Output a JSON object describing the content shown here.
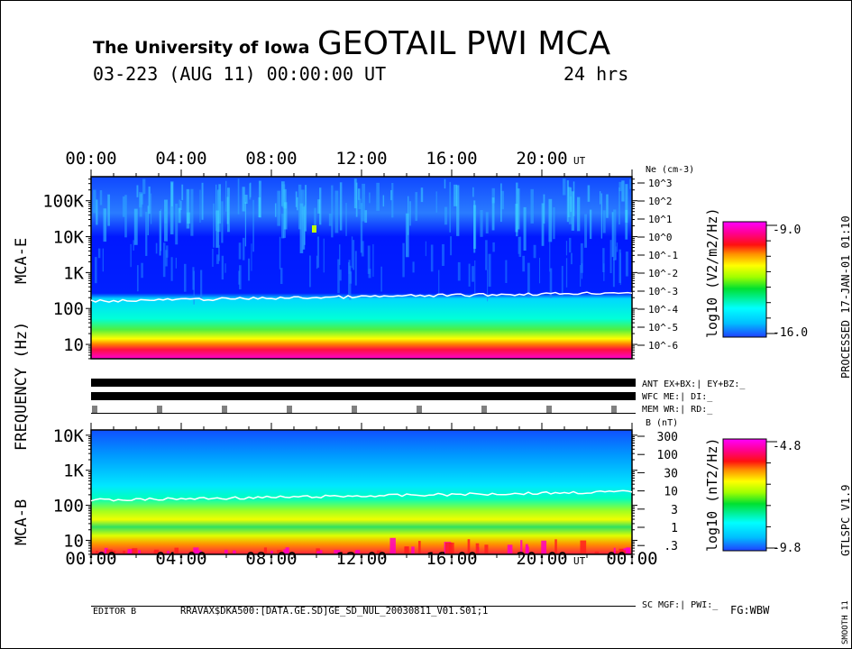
{
  "header": {
    "institution": "The University of Iowa",
    "title": "GEOTAIL PWI MCA",
    "date_line": "03-223 (AUG 11) 00:00:00 UT",
    "duration": "24 hrs"
  },
  "side_labels": {
    "panel_e": "MCA-E",
    "frequency": "FREQUENCY (Hz)",
    "panel_b": "MCA-B",
    "processed": "PROCESSED 17-JAN-01  01:10",
    "version": "GTLSPC  V1.9",
    "smooth": "SMOOTH 11"
  },
  "status": {
    "ant": "ANT EX+BX:| EY+BZ:_",
    "wfc": "WFC ME:|     DI:_",
    "mem": "MEM WR:|     RD:_",
    "sc": "SC MGF:|    PWI:_"
  },
  "footer": {
    "editor": "EDITOR B",
    "path": "RRAVAX$DKA500:[DATA.GE.SD]GE_SD_NUL_20030811_V01.S01;1",
    "fg": "FG:WBW"
  },
  "chart_data": [
    {
      "type": "heatmap",
      "name": "MCA-E",
      "xlabel": "UT",
      "x_ticks": [
        "00:00",
        "04:00",
        "08:00",
        "12:00",
        "16:00",
        "20:00"
      ],
      "x_unit": "UT",
      "xlim_hours": [
        0,
        24
      ],
      "ylabel": "FREQUENCY (Hz)",
      "y_ticks": [
        "100K",
        "10K",
        "1K",
        "100",
        "10"
      ],
      "y_tick_values": [
        100000,
        10000,
        1000,
        100,
        10
      ],
      "right_axis_label": "Ne (cm-3)",
      "right_ticks": [
        "10^3",
        "10^2",
        "10^1",
        "10^0",
        "10^-1",
        "10^-2",
        "10^-3",
        "10^-4",
        "10^-5",
        "10^-6"
      ],
      "colorbar": {
        "label": "log10 (V2/m2/Hz)",
        "max": "-9.0",
        "min": "-16.0"
      },
      "colors": {
        "low": "#0000ff",
        "mid": "#00ffff",
        "high": "#ff00ff"
      }
    },
    {
      "type": "heatmap",
      "name": "MCA-B",
      "x_ticks": [
        "00:00",
        "04:00",
        "08:00",
        "12:00",
        "16:00",
        "20:00",
        "00:00"
      ],
      "x_unit": "UT",
      "xlim_hours": [
        0,
        24
      ],
      "y_ticks": [
        "10K",
        "1K",
        "100",
        "10"
      ],
      "y_tick_values": [
        10000,
        1000,
        100,
        10
      ],
      "right_axis_label": "B (nT)",
      "right_ticks": [
        "300",
        "100",
        "30",
        "10",
        "3",
        "1",
        ".3"
      ],
      "colorbar": {
        "label": "log10 (nT2/Hz)",
        "max": "-4.8",
        "min": "-9.8"
      }
    }
  ]
}
